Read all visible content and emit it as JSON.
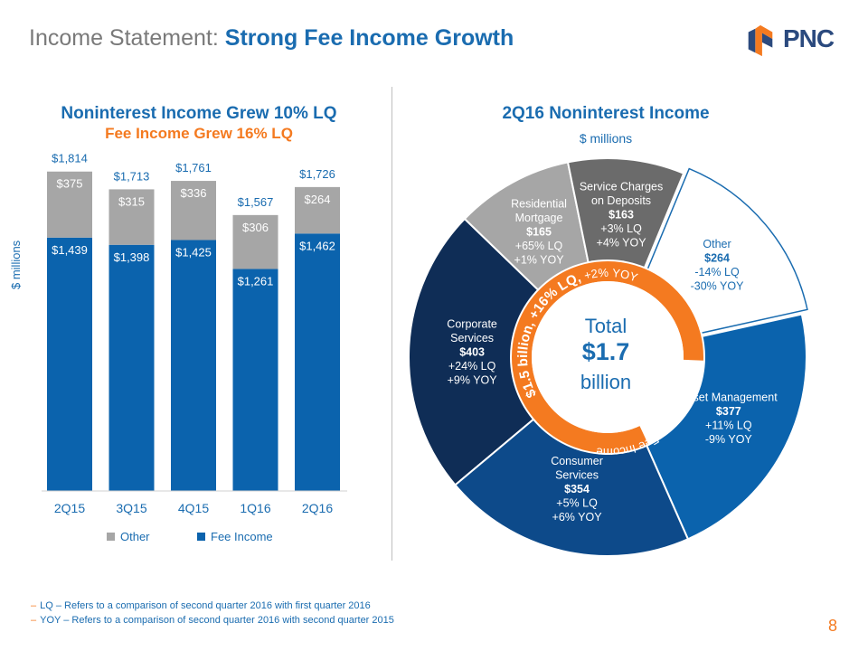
{
  "header": {
    "title_plain": "Income Statement:",
    "title_strong": "Strong Fee Income Growth",
    "logo_text": "PNC"
  },
  "colors": {
    "fee": "#0b63ad",
    "other_bar": "#a6a6a6",
    "orange": "#f47a20",
    "text_blue": "#1a6cb0"
  },
  "icons": {
    "logo": "pnc-logo-icon"
  },
  "page_number": "8",
  "footnotes": [
    "LQ – Refers to a comparison of second quarter 2016 with first quarter 2016",
    "YOY – Refers to a comparison of second quarter 2016 with second quarter 2015"
  ],
  "chart_data": [
    {
      "type": "bar",
      "stacked": true,
      "title": "Noninterest Income Grew 10% LQ",
      "subtitle": "Fee Income Grew 16% LQ",
      "ylabel": "$ millions",
      "xlabel": "",
      "categories": [
        "2Q15",
        "3Q15",
        "4Q15",
        "1Q16",
        "2Q16"
      ],
      "ylim": [
        0,
        1900
      ],
      "series": [
        {
          "name": "Fee Income",
          "color": "#0b63ad",
          "values": [
            1439,
            1398,
            1425,
            1261,
            1462
          ],
          "labels": [
            "$1,439",
            "$1,398",
            "$1,425",
            "$1,261",
            "$1,462"
          ]
        },
        {
          "name": "Other",
          "color": "#a6a6a6",
          "values": [
            375,
            315,
            336,
            306,
            264
          ],
          "labels": [
            "$375",
            "$315",
            "$336",
            "$306",
            "$264"
          ]
        }
      ],
      "totals": [
        "$1,814",
        "$1,713",
        "$1,761",
        "$1,567",
        "$1,726"
      ],
      "legend": [
        {
          "name": "Other",
          "color": "#a6a6a6"
        },
        {
          "name": "Fee Income",
          "color": "#0b63ad"
        }
      ]
    },
    {
      "type": "pie",
      "donut": true,
      "title": "2Q16 Noninterest Income",
      "subtitle": "$ millions",
      "center": {
        "line1": "Total",
        "line2": "$1.7",
        "line3": "billion"
      },
      "ring_text": {
        "part1": "Fee Income",
        "part2": "$1.5 billion,",
        "part3": "+16% LQ,",
        "part4": "+2% YOY"
      },
      "slices": [
        {
          "name_lines": [
            "Corporate",
            "Services"
          ],
          "value": 403,
          "value_label": "$403",
          "lq": "+24% LQ",
          "yoy": "+9% YOY",
          "color": "#0f2d56",
          "text_color": "#ffffff"
        },
        {
          "name_lines": [
            "Residential",
            "Mortgage"
          ],
          "value": 165,
          "value_label": "$165",
          "lq": "+65% LQ",
          "yoy": "+1% YOY",
          "color": "#a6a6a6",
          "text_color": "#ffffff"
        },
        {
          "name_lines": [
            "Service Charges",
            "on Deposits"
          ],
          "value": 163,
          "value_label": "$163",
          "lq": "+3% LQ",
          "yoy": "+4% YOY",
          "color": "#6b6b6b",
          "text_color": "#ffffff"
        },
        {
          "name_lines": [
            "Other"
          ],
          "value": 264,
          "value_label": "$264",
          "lq": "-14% LQ",
          "yoy": "-30% YOY",
          "color": "#ffffff",
          "text_color": "#1a6cb0"
        },
        {
          "name_lines": [
            "Asset Management"
          ],
          "value": 377,
          "value_label": "$377",
          "lq": "+11% LQ",
          "yoy": "-9% YOY",
          "color": "#0b63ad",
          "text_color": "#ffffff"
        },
        {
          "name_lines": [
            "Consumer",
            "Services"
          ],
          "value": 354,
          "value_label": "$354",
          "lq": "+5% LQ",
          "yoy": "+6% YOY",
          "color": "#0d4a8a",
          "text_color": "#ffffff"
        }
      ]
    }
  ]
}
